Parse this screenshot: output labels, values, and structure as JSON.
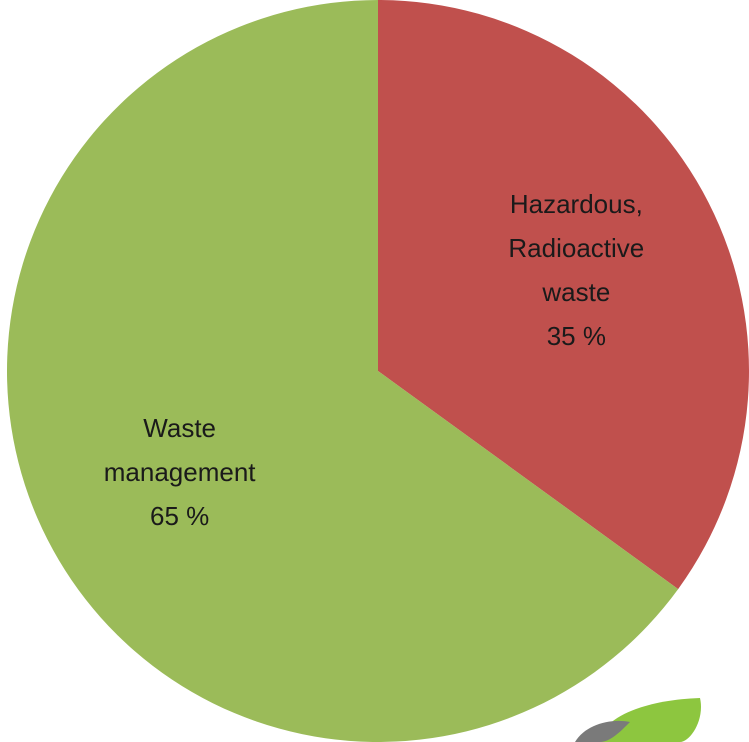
{
  "chart_data": {
    "type": "pie",
    "categories": [
      "Hazardous, Radioactive waste",
      "Waste management"
    ],
    "values": [
      35,
      65
    ],
    "value_labels": [
      "35 %",
      "65 %"
    ],
    "colors": [
      "#c0504d",
      "#9bbb59"
    ]
  }
}
